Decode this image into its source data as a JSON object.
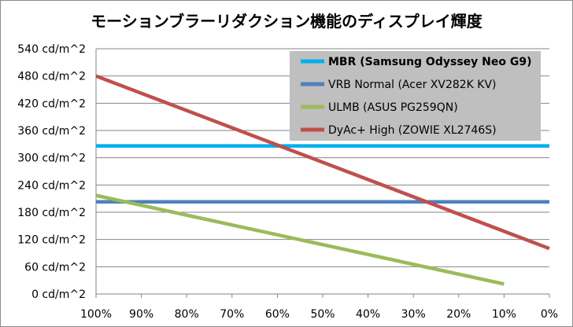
{
  "chart_data": {
    "type": "line",
    "title": "モーションブラーリダクション機能のディスプレイ輝度",
    "xlabel": "",
    "ylabel": "",
    "x_categories": [
      "100%",
      "90%",
      "80%",
      "70%",
      "60%",
      "50%",
      "40%",
      "30%",
      "20%",
      "10%",
      "0%"
    ],
    "x_values": [
      100,
      90,
      80,
      70,
      60,
      50,
      40,
      30,
      20,
      10,
      0
    ],
    "xlim": [
      100,
      0
    ],
    "ylim": [
      0,
      540
    ],
    "y_ticks": [
      0,
      60,
      120,
      180,
      240,
      300,
      360,
      420,
      480,
      540
    ],
    "y_tick_labels": [
      "0 cd/m^2",
      "60 cd/m^2",
      "120 cd/m^2",
      "180 cd/m^2",
      "240 cd/m^2",
      "300 cd/m^2",
      "360 cd/m^2",
      "420 cd/m^2",
      "480 cd/m^2",
      "540 cd/m^2"
    ],
    "grid": true,
    "legend_position": "top-right",
    "series": [
      {
        "name": "MBR (Samsung Odyssey Neo G9)",
        "color": "#00b0f0",
        "bold": true,
        "x": [
          100,
          0
        ],
        "y": [
          326,
          326
        ]
      },
      {
        "name": "VRB Normal (Acer XV282K KV)",
        "color": "#4f81bd",
        "bold": false,
        "x": [
          100,
          0
        ],
        "y": [
          203,
          203
        ]
      },
      {
        "name": "ULMB (ASUS PG259QN)",
        "color": "#9bbb59",
        "bold": false,
        "x": [
          100,
          10
        ],
        "y": [
          217,
          22
        ]
      },
      {
        "name": "DyAc+ High (ZOWIE XL2746S)",
        "color": "#c0504d",
        "bold": false,
        "x": [
          100,
          0
        ],
        "y": [
          480,
          100
        ]
      }
    ]
  }
}
